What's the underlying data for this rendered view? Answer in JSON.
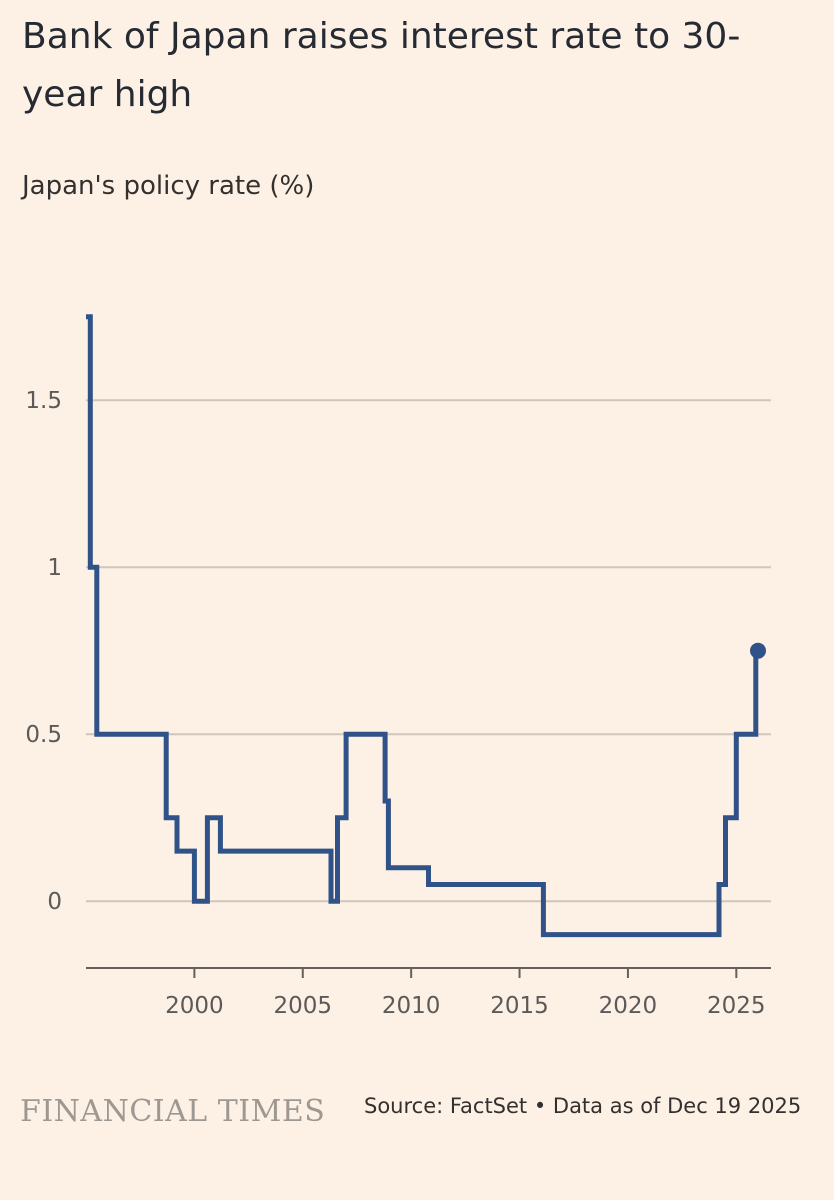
{
  "header": {
    "title": "Bank of Japan raises interest rate to 30-year high",
    "subtitle": "Japan's policy rate (%)"
  },
  "footer": {
    "logo": "FINANCIAL TIMES",
    "source": "Source: FactSet • Data as of Dec 19 2025"
  },
  "colors": {
    "background": "#fdf1e6",
    "line": "#2f5288",
    "grid": "#cfc6bd"
  },
  "chart_data": {
    "type": "line",
    "step": true,
    "title": "Bank of Japan raises interest rate to 30-year high",
    "ylabel": "Japan's policy rate (%)",
    "xlabel": "",
    "xlim": [
      1995.0,
      2026.6
    ],
    "ylim": [
      -0.2,
      1.8
    ],
    "grid": true,
    "x_ticks": [
      2000,
      2005,
      2010,
      2015,
      2020,
      2025
    ],
    "y_ticks": [
      0,
      0.5,
      1,
      1.5
    ],
    "y_tick_labels": [
      "0",
      "0.5",
      "1",
      "1.5"
    ],
    "end_marker": true,
    "series": [
      {
        "x": [
          1995.0,
          1995.2,
          1995.5,
          1998.7,
          1998.9,
          1999.2,
          2000.0,
          2000.6,
          2001.0,
          2001.2,
          2006.3,
          2006.6,
          2007.0,
          2008.8,
          2008.95,
          2010.8,
          2016.1,
          2024.2,
          2024.5,
          2024.9,
          2025.0,
          2025.9,
          2026.0
        ],
        "y": [
          1.75,
          1.0,
          0.5,
          0.25,
          0.25,
          0.15,
          0.0,
          0.25,
          0.25,
          0.15,
          0.0,
          0.25,
          0.5,
          0.3,
          0.1,
          0.05,
          -0.1,
          0.05,
          0.25,
          0.25,
          0.5,
          0.75,
          0.75
        ]
      }
    ]
  }
}
